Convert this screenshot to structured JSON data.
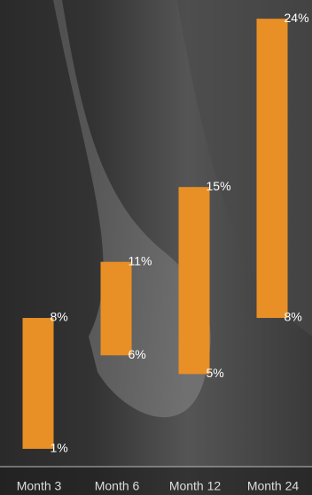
{
  "chart_data": {
    "type": "range-bar",
    "categories": [
      "Month 3",
      "Month 6",
      "Month 12",
      "Month 24"
    ],
    "low": [
      1,
      6,
      5,
      8
    ],
    "high": [
      8,
      11,
      15,
      24
    ],
    "low_labels": [
      "1%",
      "6%",
      "5%",
      "8%"
    ],
    "high_labels": [
      "8%",
      "11%",
      "15%",
      "24%"
    ],
    "color": "#e88f25",
    "ylim": [
      0,
      25
    ]
  }
}
